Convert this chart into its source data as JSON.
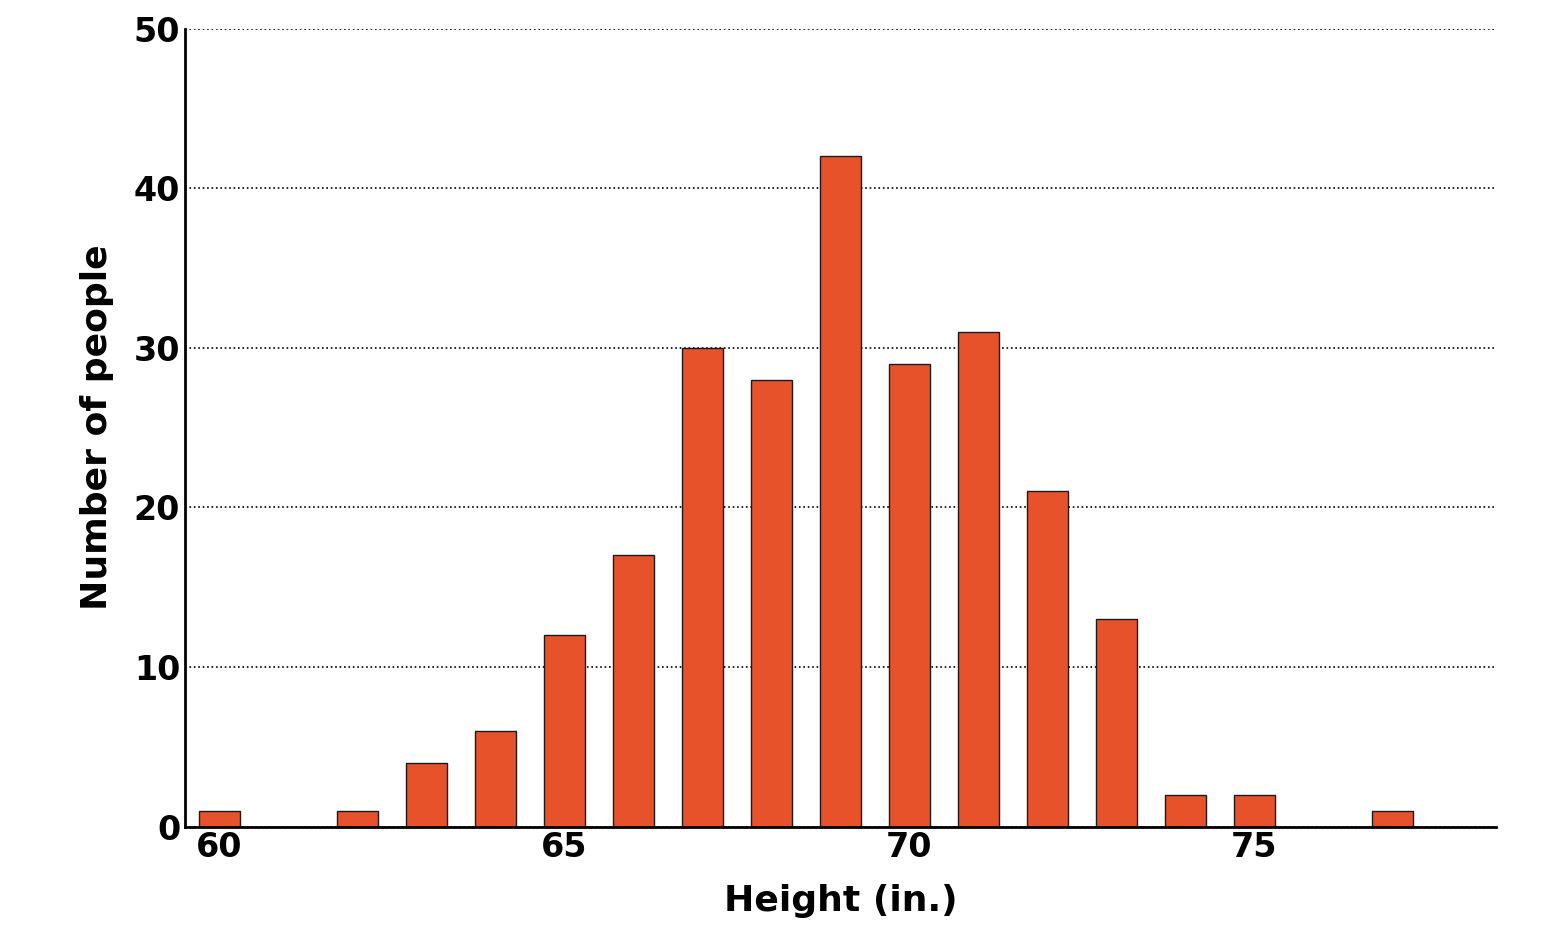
{
  "heights": [
    60,
    61,
    62,
    63,
    64,
    65,
    66,
    67,
    68,
    69,
    70,
    71,
    72,
    73,
    74,
    75,
    77
  ],
  "counts": [
    1,
    0,
    1,
    4,
    6,
    12,
    17,
    30,
    28,
    42,
    29,
    31,
    21,
    13,
    2,
    2,
    1
  ],
  "bar_color": "#E8522A",
  "bar_edgecolor": "#1a1a1a",
  "background_color": "#ffffff",
  "xlabel": "Height (in.)",
  "ylabel": "Number of people",
  "xlim": [
    59.5,
    78.5
  ],
  "ylim": [
    0,
    50
  ],
  "xticks": [
    60,
    65,
    70,
    75
  ],
  "yticks": [
    0,
    10,
    20,
    30,
    40,
    50
  ],
  "xlabel_fontsize": 26,
  "ylabel_fontsize": 26,
  "tick_fontsize": 24,
  "grid_color": "#000000",
  "grid_linewidth": 1.2,
  "bar_width": 0.6
}
